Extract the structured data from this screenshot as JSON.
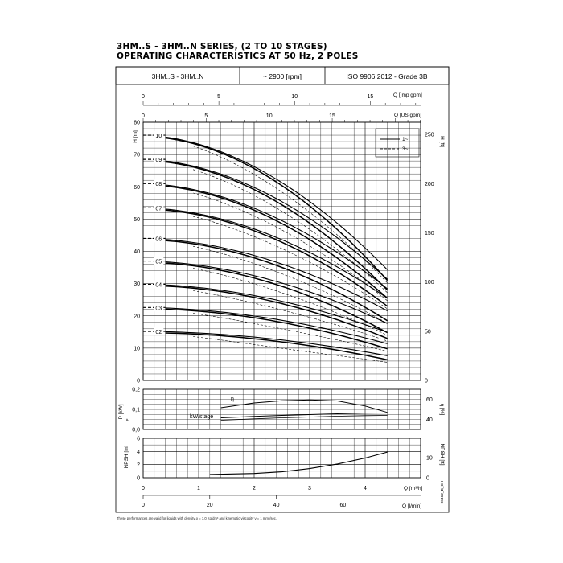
{
  "title_line1": "3HM..S - 3HM..N SERIES, (2 TO 10 STAGES)",
  "title_line2": "OPERATING CHARACTERISTICS AT 50 Hz, 2 POLES",
  "header": {
    "model": "3HM..S - 3HM..N",
    "speed": "~ 2900 [rpm]",
    "standard": "ISO 9906:2012 - Grade 3B"
  },
  "axes": {
    "q_imp_label": "Q [Imp gpm]",
    "q_us_label": "Q [US gpm]",
    "q_m3h_label": "Q [m³/h]",
    "q_lmin_label": "Q [l/min]",
    "h_m_label": "H [m]",
    "h_ft_label": "H [ft]",
    "pp_label": "P [kW]",
    "pp_sub": "P",
    "eta_label": "η [%]",
    "npsh_m_label": "NPSH [m]",
    "npsh_ft_label": "NPSH [ft]"
  },
  "legend": {
    "single_phase": "1~",
    "three_phase": "3~"
  },
  "labels": {
    "eta_curve": "η",
    "kw_curve": "kW/stage"
  },
  "drawing_code": "06462_B_CH",
  "footnote": "These performances are valid for liquids with density ρ = 1.0 Kg/dm³ and kinematic viscosity ν = 1 mm²/sec.",
  "chart_data": [
    {
      "type": "line",
      "title": "",
      "xlabel": "Q [m³/h]",
      "ylabel": "H [m]",
      "xlim": [
        0,
        5
      ],
      "ylim": [
        0,
        80
      ],
      "secondary_y": {
        "label": "H [ft]",
        "ticks": [
          0,
          50,
          100,
          150,
          200,
          250
        ]
      },
      "top_axes": [
        {
          "label": "Q [Imp gpm]",
          "ticks": [
            0,
            5,
            10,
            15
          ]
        },
        {
          "label": "Q [US gpm]",
          "ticks": [
            0,
            5,
            10,
            15
          ]
        }
      ],
      "bottom_axis_lmin": {
        "label": "Q [l/min]",
        "ticks": [
          0,
          20,
          40,
          60
        ]
      },
      "x_ticks": [
        0,
        1,
        2,
        3,
        4
      ],
      "y_ticks": [
        0,
        10,
        20,
        30,
        40,
        50,
        60,
        70,
        80
      ],
      "q_range": [
        0.4,
        4.4
      ],
      "series": [
        {
          "name": "02",
          "h0": 15.2,
          "h_end": 6.4,
          "h_end_alt": 7.8
        },
        {
          "name": "03",
          "h0": 22.6,
          "h_end": 9.8,
          "h_end_alt": 11.6
        },
        {
          "name": "04",
          "h0": 29.8,
          "h_end": 13.0,
          "h_end_alt": 15.2
        },
        {
          "name": "05",
          "h0": 37.0,
          "h_end": 14.8,
          "h_end_alt": 18.0
        },
        {
          "name": "06",
          "h0": 44.0,
          "h_end": 18.5,
          "h_end_alt": 22.0
        },
        {
          "name": "07",
          "h0": 53.5,
          "h_end": 23.0,
          "h_end_alt": 26.0
        },
        {
          "name": "08",
          "h0": 61.0,
          "h_end": 25.5,
          "h_end_alt": 29.0
        },
        {
          "name": "09",
          "h0": 68.5,
          "h_end": 28.0,
          "h_end_alt": 32.0
        },
        {
          "name": "10",
          "h0": 76.0,
          "h_end": 31.0,
          "h_end_alt": 35.0
        }
      ]
    },
    {
      "type": "line",
      "title": "",
      "xlabel": "Q [m³/h]",
      "ylabel": "P [kW]",
      "xlim": [
        0,
        5
      ],
      "ylim": [
        0,
        0.2
      ],
      "y_ticks": [
        0.0,
        0.1,
        0.2
      ],
      "secondary_y": {
        "label": "η [%]",
        "ticks": [
          40,
          60
        ]
      },
      "series": [
        {
          "name": "η",
          "x": [
            1.4,
            2.0,
            2.5,
            3.0,
            3.5,
            4.0,
            4.4
          ],
          "y": [
            0.108,
            0.132,
            0.143,
            0.147,
            0.142,
            0.117,
            0.085
          ]
        },
        {
          "name": "kW/stage",
          "x": [
            1.4,
            2.0,
            2.5,
            3.0,
            3.5,
            4.0,
            4.4
          ],
          "y": [
            0.058,
            0.065,
            0.07,
            0.074,
            0.078,
            0.081,
            0.082
          ]
        }
      ]
    },
    {
      "type": "line",
      "title": "",
      "xlabel": "Q [m³/h]",
      "ylabel": "NPSH [m]",
      "xlim": [
        0,
        5
      ],
      "ylim": [
        0,
        6
      ],
      "y_ticks": [
        0,
        2,
        4,
        6
      ],
      "secondary_y": {
        "label": "NPSH [ft]",
        "ticks": [
          0,
          10
        ]
      },
      "series": [
        {
          "name": "NPSH",
          "x": [
            1.2,
            2.0,
            2.5,
            3.0,
            3.5,
            4.0,
            4.4
          ],
          "y": [
            0.5,
            0.65,
            0.9,
            1.4,
            2.1,
            3.0,
            3.9
          ]
        }
      ]
    }
  ]
}
